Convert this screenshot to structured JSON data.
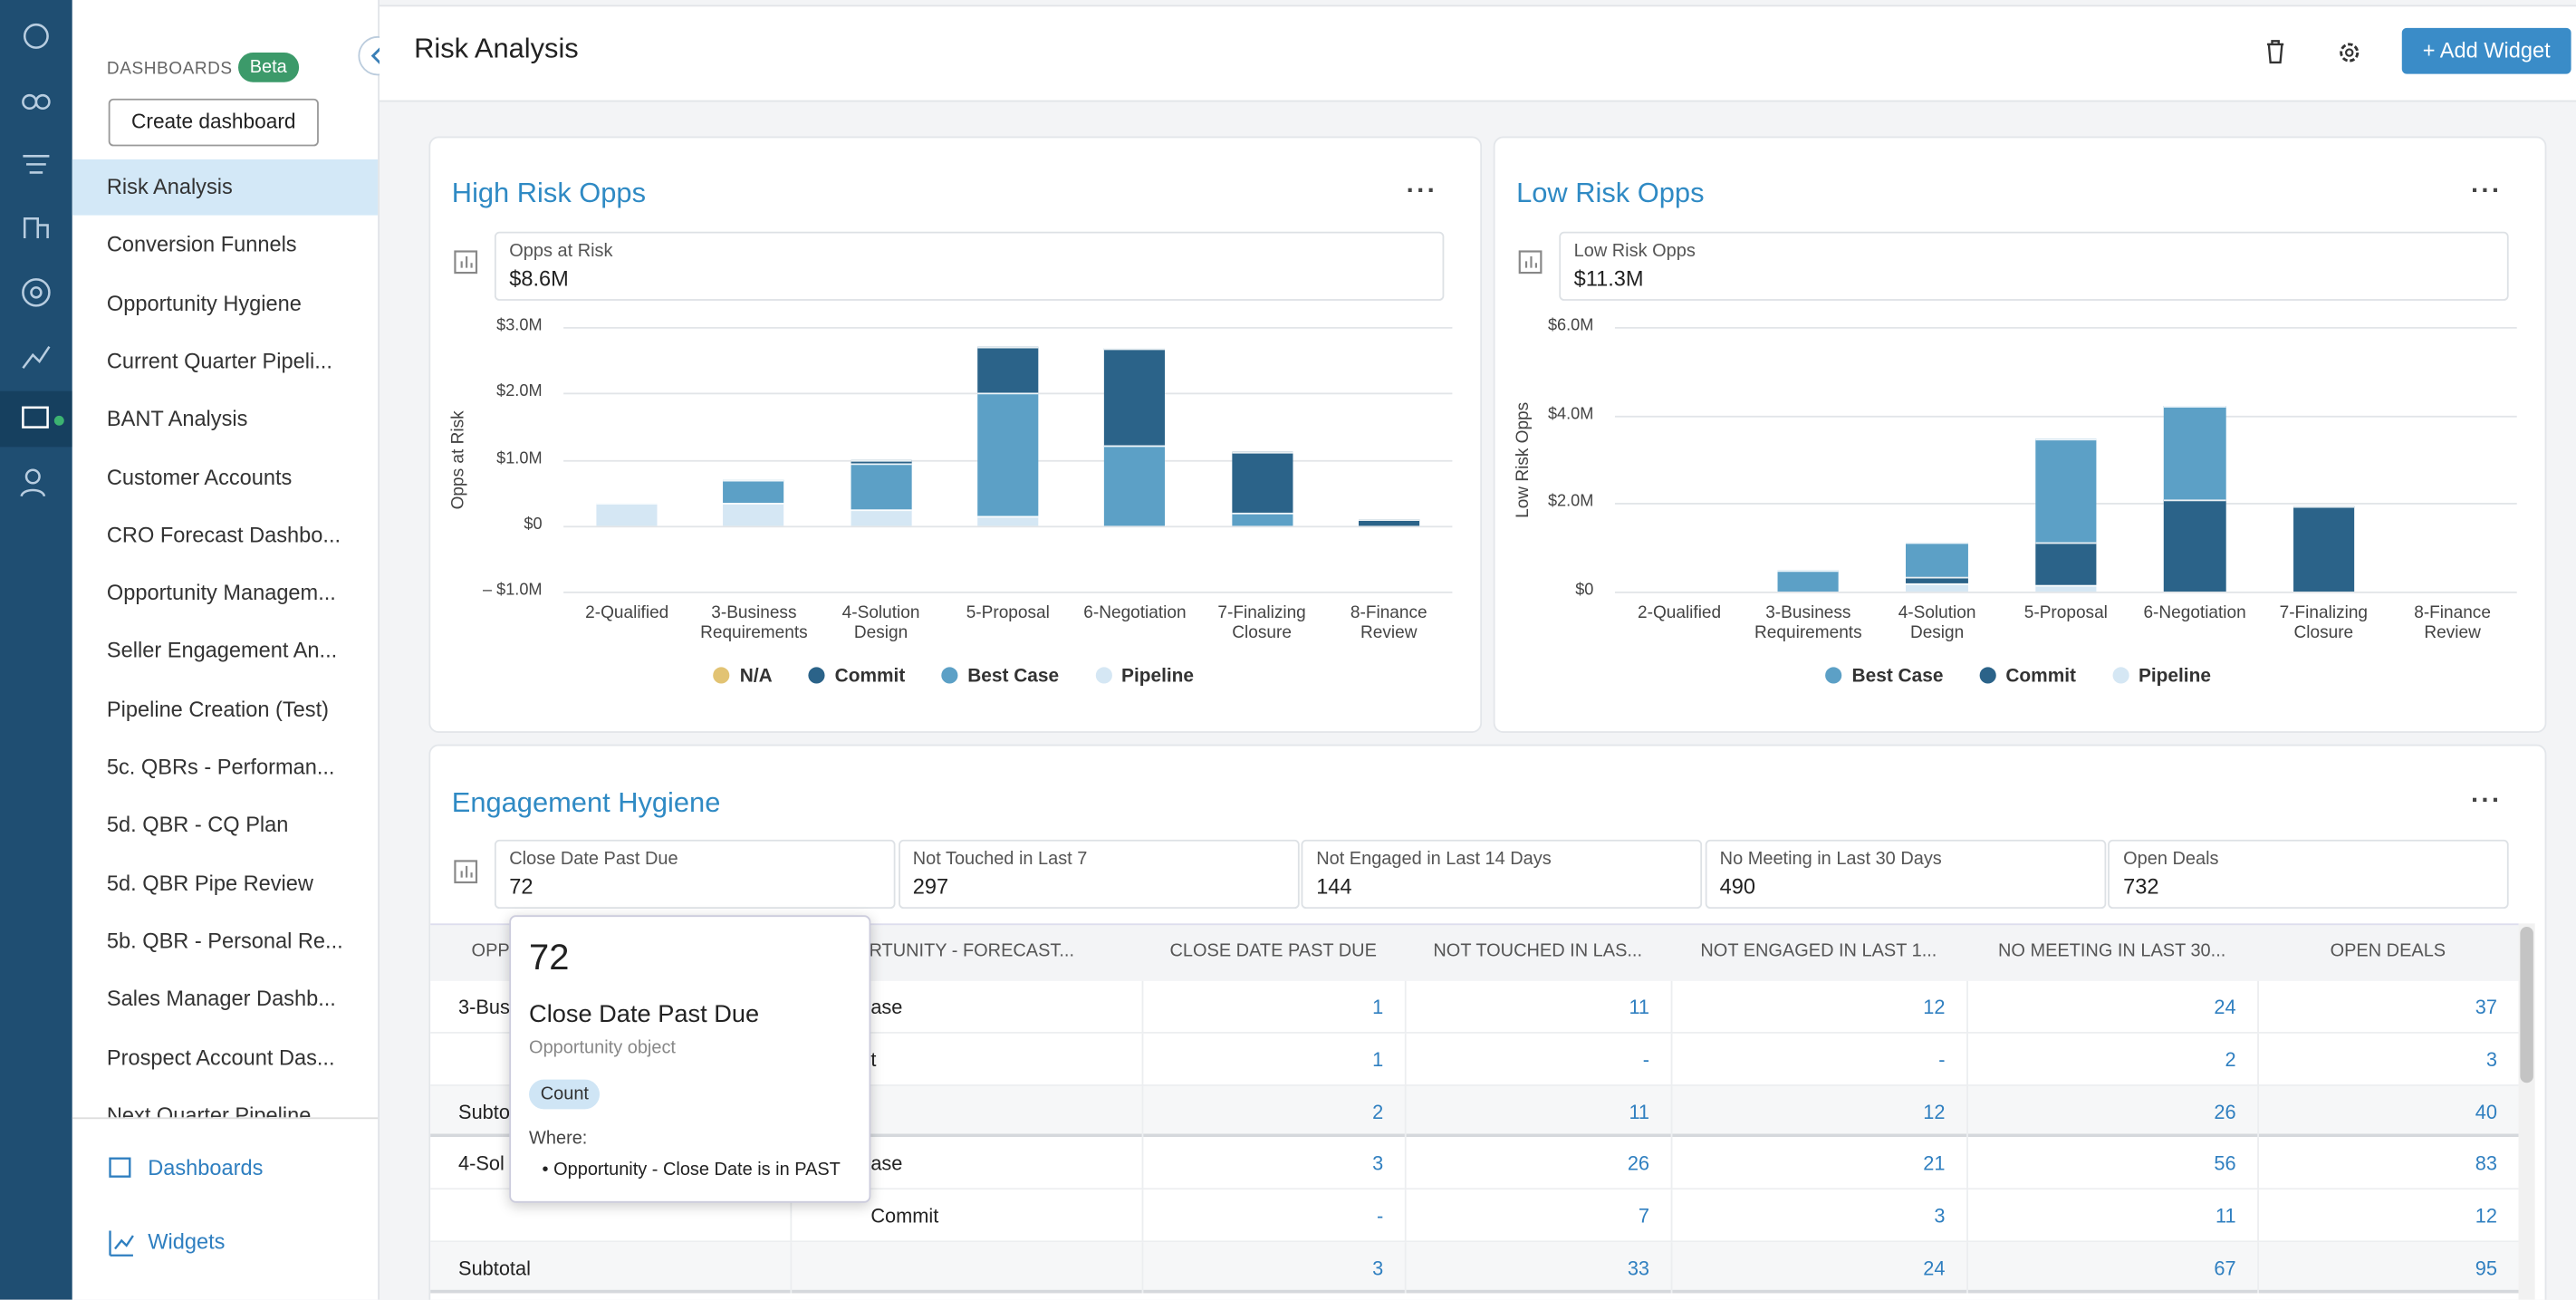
{
  "sidebar": {
    "section_label": "DASHBOARDS",
    "badge": "Beta",
    "create_button": "Create dashboard",
    "items": [
      "Risk Analysis",
      "Conversion Funnels",
      "Opportunity Hygiene",
      "Current Quarter Pipeli...",
      "BANT Analysis",
      "Customer Accounts",
      "CRO Forecast Dashbo...",
      "Opportunity Managem...",
      "Seller Engagement An...",
      "Pipeline Creation (Test)",
      "5c. QBRs - Performan...",
      "5d. QBR - CQ Plan",
      "5d. QBR Pipe Review",
      "5b. QBR - Personal Re...",
      "Sales Manager Dashb...",
      "Prospect Account Das...",
      "Next Quarter Pipeline"
    ],
    "footer_links": [
      "Dashboards",
      "Widgets"
    ]
  },
  "header": {
    "title": "Risk Analysis",
    "add_button": "+ Add Widget"
  },
  "chart_data": [
    {
      "type": "bar",
      "stacked": true,
      "title": "High Risk Opps",
      "kpi_label": "Opps at Risk",
      "kpi_value": "$8.6M",
      "y_label": "Opps at Risk",
      "categories": [
        "2-Qualified",
        "3-Business Requirements",
        "4-Solution Design",
        "5-Proposal",
        "6-Negotiation",
        "7-Finalizing Closure",
        "8-Finance Review"
      ],
      "series": [
        {
          "name": "N/A",
          "color": "#e2c373",
          "values": [
            0,
            0,
            0,
            0,
            0,
            0,
            0
          ]
        },
        {
          "name": "Commit",
          "color": "#2b6389",
          "values": [
            0,
            0,
            50000,
            700000,
            1450000,
            900000,
            100000
          ]
        },
        {
          "name": "Best Case",
          "color": "#5ca0c6",
          "values": [
            0,
            330000,
            700000,
            1850000,
            1220000,
            200000,
            0
          ]
        },
        {
          "name": "Pipeline",
          "color": "#d5e7f4",
          "values": [
            330000,
            350000,
            250000,
            150000,
            0,
            0,
            0
          ]
        }
      ],
      "ylim": [
        -1000000,
        3000000
      ],
      "yticks": [
        {
          "value": -1000000,
          "label": "– $1.0M"
        },
        {
          "value": 0,
          "label": "$0"
        },
        {
          "value": 1000000,
          "label": "$1.0M"
        },
        {
          "value": 2000000,
          "label": "$2.0M"
        },
        {
          "value": 3000000,
          "label": "$3.0M"
        }
      ],
      "grid": true
    },
    {
      "type": "bar",
      "stacked": true,
      "title": "Low Risk Opps",
      "kpi_label": "Low Risk Opps",
      "kpi_value": "$11.3M",
      "y_label": "Low Risk Opps",
      "categories": [
        "2-Qualified",
        "3-Business Requirements",
        "4-Solution Design",
        "5-Proposal",
        "6-Negotiation",
        "7-Finalizing Closure",
        "8-Finance Review"
      ],
      "series": [
        {
          "name": "Best Case",
          "color": "#5ca0c6",
          "values": [
            0,
            480000,
            750000,
            2350000,
            2100000,
            0,
            0
          ]
        },
        {
          "name": "Commit",
          "color": "#2b6389",
          "values": [
            0,
            0,
            150000,
            950000,
            2100000,
            1950000,
            0
          ]
        },
        {
          "name": "Pipeline",
          "color": "#d5e7f4",
          "values": [
            0,
            0,
            200000,
            150000,
            0,
            0,
            0
          ]
        }
      ],
      "ylim": [
        0,
        6000000
      ],
      "yticks": [
        {
          "value": 0,
          "label": "$0"
        },
        {
          "value": 2000000,
          "label": "$2.0M"
        },
        {
          "value": 4000000,
          "label": "$4.0M"
        },
        {
          "value": 6000000,
          "label": "$6.0M"
        }
      ],
      "grid": true
    }
  ],
  "engagement": {
    "title": "Engagement Hygiene",
    "kpis": [
      {
        "label": "Close Date Past Due",
        "value": 72
      },
      {
        "label": "Not Touched in Last 7",
        "value": 297
      },
      {
        "label": "Not Engaged in Last 14 Days",
        "value": 144
      },
      {
        "label": "No Meeting in Last 30 Days",
        "value": 490
      },
      {
        "label": "Open Deals",
        "value": 732
      }
    ],
    "table": {
      "headers": [
        "OPP",
        "RTUNITY - FORECAST...",
        "CLOSE DATE PAST DUE",
        "NOT TOUCHED IN LAS...",
        "NOT ENGAGED IN LAST 1...",
        "NO MEETING IN LAST 30...",
        "OPEN DEALS"
      ],
      "rows": [
        [
          "3-Bus",
          "ase",
          1,
          11,
          12,
          24,
          37
        ],
        [
          null,
          "t",
          1,
          "-",
          "-",
          2,
          3
        ],
        [
          "Subtot",
          null,
          2,
          11,
          12,
          26,
          40
        ],
        [
          "4-Sol",
          "ase",
          3,
          26,
          21,
          56,
          83
        ],
        [
          null,
          "Commit",
          "-",
          7,
          3,
          11,
          12
        ],
        [
          "Subtotal",
          null,
          3,
          33,
          24,
          67,
          95
        ]
      ]
    },
    "tooltip": {
      "value": 72,
      "title": "Close Date Past Due",
      "object": "Opportunity object",
      "badge": "Count",
      "where_label": "Where:",
      "conditions": [
        "Opportunity - Close Date is in PAST"
      ]
    }
  }
}
